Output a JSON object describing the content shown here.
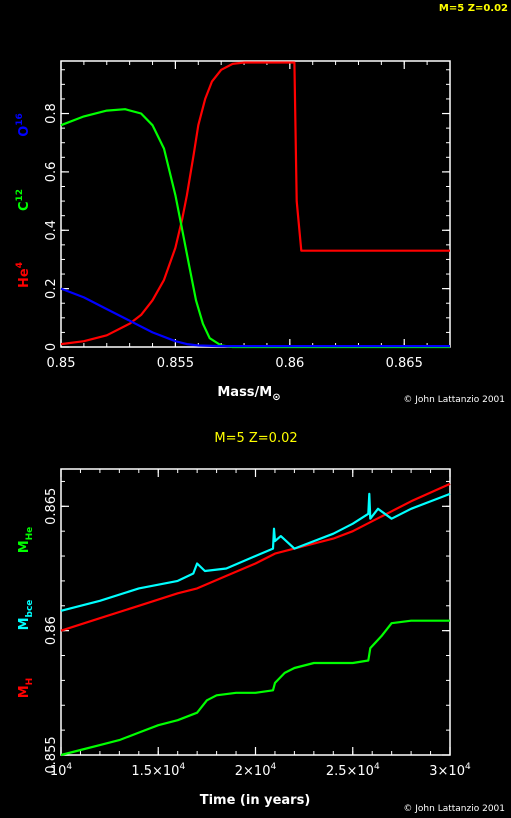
{
  "header": {
    "corner_label": "M=5 Z=0.02"
  },
  "colors": {
    "he4": "#ff0000",
    "c12": "#00ff00",
    "o16": "#0000ff",
    "mbce": "#00ffff",
    "mh": "#00ff00",
    "mhe": "#ff0000",
    "label_yellow": "#ffff00"
  },
  "chart_data": [
    {
      "type": "line",
      "xlabel": "Mass/M",
      "xlabel_sub": "⊙",
      "ylabels": [
        {
          "text": "He",
          "sup": "4",
          "color": "#ff0000"
        },
        {
          "text": "C",
          "sup": "12",
          "color": "#00ff00"
        },
        {
          "text": "O",
          "sup": "16",
          "color": "#0000ff"
        }
      ],
      "xlim": [
        0.85,
        0.867
      ],
      "ylim": [
        0,
        0.98
      ],
      "xticks": [
        0.85,
        0.855,
        0.86,
        0.865
      ],
      "xtick_labels": [
        "0.85",
        "0.855",
        "0.86",
        "0.865"
      ],
      "yticks": [
        0,
        0.2,
        0.4,
        0.6,
        0.8
      ],
      "ytick_labels": [
        "0",
        "0.2",
        "0.4",
        "0.6",
        "0.8"
      ],
      "credit": "© John Lattanzio 2001",
      "series": [
        {
          "key": "he4",
          "color": "#ff0000",
          "x": [
            0.85,
            0.851,
            0.852,
            0.853,
            0.8535,
            0.854,
            0.8545,
            0.855,
            0.8553,
            0.8555,
            0.8558,
            0.856,
            0.8563,
            0.8566,
            0.857,
            0.8575,
            0.858,
            0.8585,
            0.859,
            0.8595,
            0.8602,
            0.8603,
            0.8605,
            0.861,
            0.863,
            0.865,
            0.867
          ],
          "y": [
            0.01,
            0.02,
            0.04,
            0.08,
            0.11,
            0.16,
            0.23,
            0.34,
            0.44,
            0.52,
            0.66,
            0.76,
            0.85,
            0.91,
            0.95,
            0.97,
            0.975,
            0.975,
            0.975,
            0.975,
            0.975,
            0.5,
            0.33,
            0.33,
            0.33,
            0.33,
            0.33
          ]
        },
        {
          "key": "c12",
          "color": "#00ff00",
          "x": [
            0.85,
            0.851,
            0.852,
            0.8528,
            0.8535,
            0.854,
            0.8545,
            0.855,
            0.8553,
            0.8556,
            0.8559,
            0.8562,
            0.8565,
            0.857,
            0.8575,
            0.858,
            0.86,
            0.863,
            0.867
          ],
          "y": [
            0.76,
            0.79,
            0.81,
            0.815,
            0.8,
            0.76,
            0.68,
            0.52,
            0.4,
            0.28,
            0.16,
            0.08,
            0.03,
            0.005,
            0,
            0,
            0,
            0,
            0
          ]
        },
        {
          "key": "o16",
          "color": "#0000ff",
          "x": [
            0.85,
            0.851,
            0.852,
            0.853,
            0.854,
            0.855,
            0.8555,
            0.856,
            0.857,
            0.86,
            0.863,
            0.867
          ],
          "y": [
            0.2,
            0.17,
            0.13,
            0.09,
            0.05,
            0.02,
            0.01,
            0.005,
            0.003,
            0.003,
            0.003,
            0.003
          ]
        }
      ]
    },
    {
      "type": "line",
      "title": "M=5 Z=0.02",
      "xlabel": "Time (in years)",
      "ylabels": [
        {
          "text": "M",
          "sub": "H",
          "color": "#ff0000"
        },
        {
          "text": "M",
          "sub": "bce",
          "color": "#00ffff"
        },
        {
          "text": "M",
          "sub": "He",
          "color": "#00ff00"
        }
      ],
      "xlim": [
        10000,
        30000
      ],
      "ylim": [
        0.855,
        0.8665
      ],
      "xticks": [
        10000,
        15000,
        20000,
        25000,
        30000
      ],
      "xtick_labels": [
        {
          "base": "10",
          "exp": "4"
        },
        {
          "base": "1.5×10",
          "exp": "4"
        },
        {
          "base": "2×10",
          "exp": "4"
        },
        {
          "base": "2.5×10",
          "exp": "4"
        },
        {
          "base": "3×10",
          "exp": "4"
        }
      ],
      "yticks": [
        0.855,
        0.86,
        0.865
      ],
      "ytick_labels": [
        "0.855",
        "0.86",
        "0.865"
      ],
      "credit": "© John Lattanzio 2001",
      "series": [
        {
          "key": "mhe",
          "color": "#ff0000",
          "x": [
            10000,
            12000,
            14000,
            16000,
            17000,
            18500,
            20000,
            21000,
            22000,
            24000,
            25000,
            26000,
            27000,
            28000,
            30000
          ],
          "y": [
            0.86,
            0.8605,
            0.861,
            0.8615,
            0.8617,
            0.8622,
            0.8627,
            0.8631,
            0.8633,
            0.8637,
            0.864,
            0.8644,
            0.8648,
            0.8652,
            0.8659
          ]
        },
        {
          "key": "mbce",
          "color": "#00ffff",
          "x": [
            10000,
            12000,
            14000,
            16000,
            16800,
            17000,
            17400,
            18500,
            20000,
            20900,
            20950,
            21000,
            21300,
            22000,
            24000,
            25000,
            25800,
            25850,
            25900,
            26300,
            27000,
            28000,
            30000
          ],
          "y": [
            0.8608,
            0.8612,
            0.8617,
            0.862,
            0.8623,
            0.8627,
            0.8624,
            0.8625,
            0.863,
            0.8633,
            0.8641,
            0.8636,
            0.8638,
            0.8633,
            0.8639,
            0.8643,
            0.8647,
            0.8655,
            0.8645,
            0.8649,
            0.8645,
            0.8649,
            0.8655
          ]
        },
        {
          "key": "mh",
          "color": "#00ff00",
          "x": [
            10000,
            11000,
            12000,
            13000,
            14000,
            15000,
            16000,
            17000,
            17500,
            18000,
            19000,
            20000,
            20900,
            21000,
            21500,
            22000,
            23000,
            24000,
            25000,
            25800,
            25900,
            26500,
            27000,
            28000,
            30000
          ],
          "y": [
            0.855,
            0.8552,
            0.8554,
            0.8556,
            0.8559,
            0.8562,
            0.8564,
            0.8567,
            0.8572,
            0.8574,
            0.8575,
            0.8575,
            0.8576,
            0.8579,
            0.8583,
            0.8585,
            0.8587,
            0.8587,
            0.8587,
            0.8588,
            0.8593,
            0.8598,
            0.8603,
            0.8604,
            0.8604
          ]
        }
      ]
    }
  ]
}
